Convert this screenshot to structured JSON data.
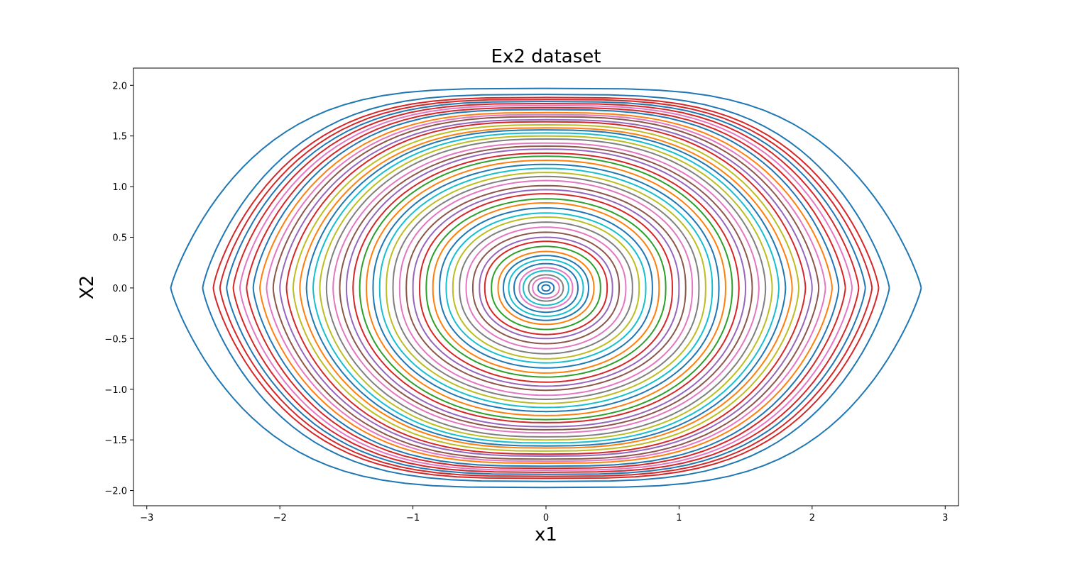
{
  "chart_data": {
    "type": "line",
    "title": "Ex2 dataset",
    "xlabel": "x1",
    "ylabel": "X2",
    "xlim": [
      -3.1,
      3.1
    ],
    "ylim": [
      -2.15,
      2.17
    ],
    "x_ticks": [
      -3,
      -2,
      -1,
      0,
      1,
      2,
      3
    ],
    "y_ticks": [
      -2.0,
      -1.5,
      -1.0,
      -0.5,
      0.0,
      0.5,
      1.0,
      1.5,
      2.0
    ],
    "x_tick_labels": [
      "−3",
      "−2",
      "−1",
      "0",
      "1",
      "2",
      "3"
    ],
    "y_tick_labels": [
      "−2.0",
      "−1.5",
      "−1.0",
      "−0.5",
      "0.0",
      "0.5",
      "1.0",
      "1.5",
      "2.0"
    ],
    "grid": false,
    "legend": "none",
    "series_description": "closed orbits x1^2/2 - x1^4/... style pendulum-like trajectories; each series is a closed curve defined by its amplitude along x1",
    "series": [
      {
        "x_amplitude": 0.03,
        "y_amplitude": 0.03,
        "color": "#1f77b4"
      },
      {
        "x_amplitude": 0.06,
        "y_amplitude": 0.06,
        "color": "#1f77b4"
      },
      {
        "x_amplitude": 0.1,
        "y_amplitude": 0.1,
        "color": "#e377c2"
      },
      {
        "x_amplitude": 0.13,
        "y_amplitude": 0.13,
        "color": "#7f7f7f"
      },
      {
        "x_amplitude": 0.17,
        "y_amplitude": 0.17,
        "color": "#17becf"
      },
      {
        "x_amplitude": 0.2,
        "y_amplitude": 0.2,
        "color": "#e377c2"
      },
      {
        "x_amplitude": 0.24,
        "y_amplitude": 0.24,
        "color": "#1f77b4"
      },
      {
        "x_amplitude": 0.28,
        "y_amplitude": 0.28,
        "color": "#17becf"
      },
      {
        "x_amplitude": 0.32,
        "y_amplitude": 0.32,
        "color": "#1f77b4"
      },
      {
        "x_amplitude": 0.36,
        "y_amplitude": 0.36,
        "color": "#ff7f0e"
      },
      {
        "x_amplitude": 0.41,
        "y_amplitude": 0.41,
        "color": "#2ca02c"
      },
      {
        "x_amplitude": 0.46,
        "y_amplitude": 0.46,
        "color": "#d62728"
      },
      {
        "x_amplitude": 0.5,
        "y_amplitude": 0.5,
        "color": "#9467bd"
      },
      {
        "x_amplitude": 0.55,
        "y_amplitude": 0.55,
        "color": "#8c564b"
      },
      {
        "x_amplitude": 0.6,
        "y_amplitude": 0.6,
        "color": "#e377c2"
      },
      {
        "x_amplitude": 0.65,
        "y_amplitude": 0.65,
        "color": "#7f7f7f"
      },
      {
        "x_amplitude": 0.7,
        "y_amplitude": 0.7,
        "color": "#bcbd22"
      },
      {
        "x_amplitude": 0.75,
        "y_amplitude": 0.74,
        "color": "#17becf"
      },
      {
        "x_amplitude": 0.8,
        "y_amplitude": 0.79,
        "color": "#1f77b4"
      },
      {
        "x_amplitude": 0.85,
        "y_amplitude": 0.84,
        "color": "#ff7f0e"
      },
      {
        "x_amplitude": 0.9,
        "y_amplitude": 0.88,
        "color": "#2ca02c"
      },
      {
        "x_amplitude": 0.95,
        "y_amplitude": 0.93,
        "color": "#d62728"
      },
      {
        "x_amplitude": 1.0,
        "y_amplitude": 0.97,
        "color": "#9467bd"
      },
      {
        "x_amplitude": 1.05,
        "y_amplitude": 1.01,
        "color": "#8c564b"
      },
      {
        "x_amplitude": 1.1,
        "y_amplitude": 1.06,
        "color": "#e377c2"
      },
      {
        "x_amplitude": 1.15,
        "y_amplitude": 1.1,
        "color": "#7f7f7f"
      },
      {
        "x_amplitude": 1.2,
        "y_amplitude": 1.14,
        "color": "#bcbd22"
      },
      {
        "x_amplitude": 1.25,
        "y_amplitude": 1.18,
        "color": "#17becf"
      },
      {
        "x_amplitude": 1.3,
        "y_amplitude": 1.22,
        "color": "#1f77b4"
      },
      {
        "x_amplitude": 1.35,
        "y_amplitude": 1.26,
        "color": "#ff7f0e"
      },
      {
        "x_amplitude": 1.4,
        "y_amplitude": 1.3,
        "color": "#2ca02c"
      },
      {
        "x_amplitude": 1.45,
        "y_amplitude": 1.33,
        "color": "#d62728"
      },
      {
        "x_amplitude": 1.5,
        "y_amplitude": 1.37,
        "color": "#9467bd"
      },
      {
        "x_amplitude": 1.55,
        "y_amplitude": 1.4,
        "color": "#8c564b"
      },
      {
        "x_amplitude": 1.6,
        "y_amplitude": 1.43,
        "color": "#e377c2"
      },
      {
        "x_amplitude": 1.65,
        "y_amplitude": 1.47,
        "color": "#7f7f7f"
      },
      {
        "x_amplitude": 1.7,
        "y_amplitude": 1.5,
        "color": "#bcbd22"
      },
      {
        "x_amplitude": 1.75,
        "y_amplitude": 1.53,
        "color": "#17becf"
      },
      {
        "x_amplitude": 1.8,
        "y_amplitude": 1.56,
        "color": "#1f77b4"
      },
      {
        "x_amplitude": 1.85,
        "y_amplitude": 1.58,
        "color": "#ff7f0e"
      },
      {
        "x_amplitude": 1.9,
        "y_amplitude": 1.61,
        "color": "#bcbd22"
      },
      {
        "x_amplitude": 1.95,
        "y_amplitude": 1.64,
        "color": "#d62728"
      },
      {
        "x_amplitude": 2.0,
        "y_amplitude": 1.66,
        "color": "#9467bd"
      },
      {
        "x_amplitude": 2.05,
        "y_amplitude": 1.69,
        "color": "#8c564b"
      },
      {
        "x_amplitude": 2.1,
        "y_amplitude": 1.71,
        "color": "#e377c2"
      },
      {
        "x_amplitude": 2.15,
        "y_amplitude": 1.73,
        "color": "#ff7f0e"
      },
      {
        "x_amplitude": 2.2,
        "y_amplitude": 1.76,
        "color": "#1f77b4"
      },
      {
        "x_amplitude": 2.25,
        "y_amplitude": 1.78,
        "color": "#d62728"
      },
      {
        "x_amplitude": 2.3,
        "y_amplitude": 1.8,
        "color": "#e377c2"
      },
      {
        "x_amplitude": 2.35,
        "y_amplitude": 1.82,
        "color": "#d62728"
      },
      {
        "x_amplitude": 2.4,
        "y_amplitude": 1.84,
        "color": "#1f77b4"
      },
      {
        "x_amplitude": 2.45,
        "y_amplitude": 1.86,
        "color": "#d62728"
      },
      {
        "x_amplitude": 2.5,
        "y_amplitude": 1.88,
        "color": "#d62728"
      },
      {
        "x_amplitude": 2.58,
        "y_amplitude": 1.91,
        "color": "#1f77b4"
      },
      {
        "x_amplitude": 2.82,
        "y_amplitude": 1.97,
        "color": "#1f77b4"
      }
    ]
  }
}
